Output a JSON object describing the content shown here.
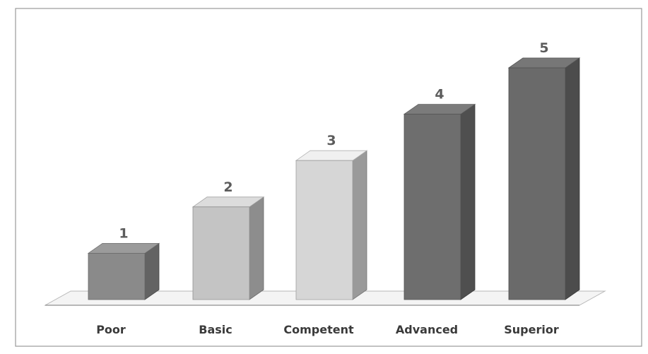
{
  "chart_data": {
    "type": "bar",
    "categories": [
      "Poor",
      "Basic",
      "Competent",
      "Advanced",
      "Superior"
    ],
    "values": [
      1,
      2,
      3,
      4,
      5
    ],
    "data_labels": [
      "1",
      "2",
      "3",
      "4",
      "5"
    ],
    "title": "",
    "xlabel": "",
    "ylabel": "",
    "ylim": [
      0,
      5
    ],
    "grid": false,
    "legend": "none",
    "three_d": true,
    "colors": [
      "#8a8a8a",
      "#c4c4c4",
      "#d6d6d6",
      "#6e6e6e",
      "#6a6a6a"
    ]
  }
}
